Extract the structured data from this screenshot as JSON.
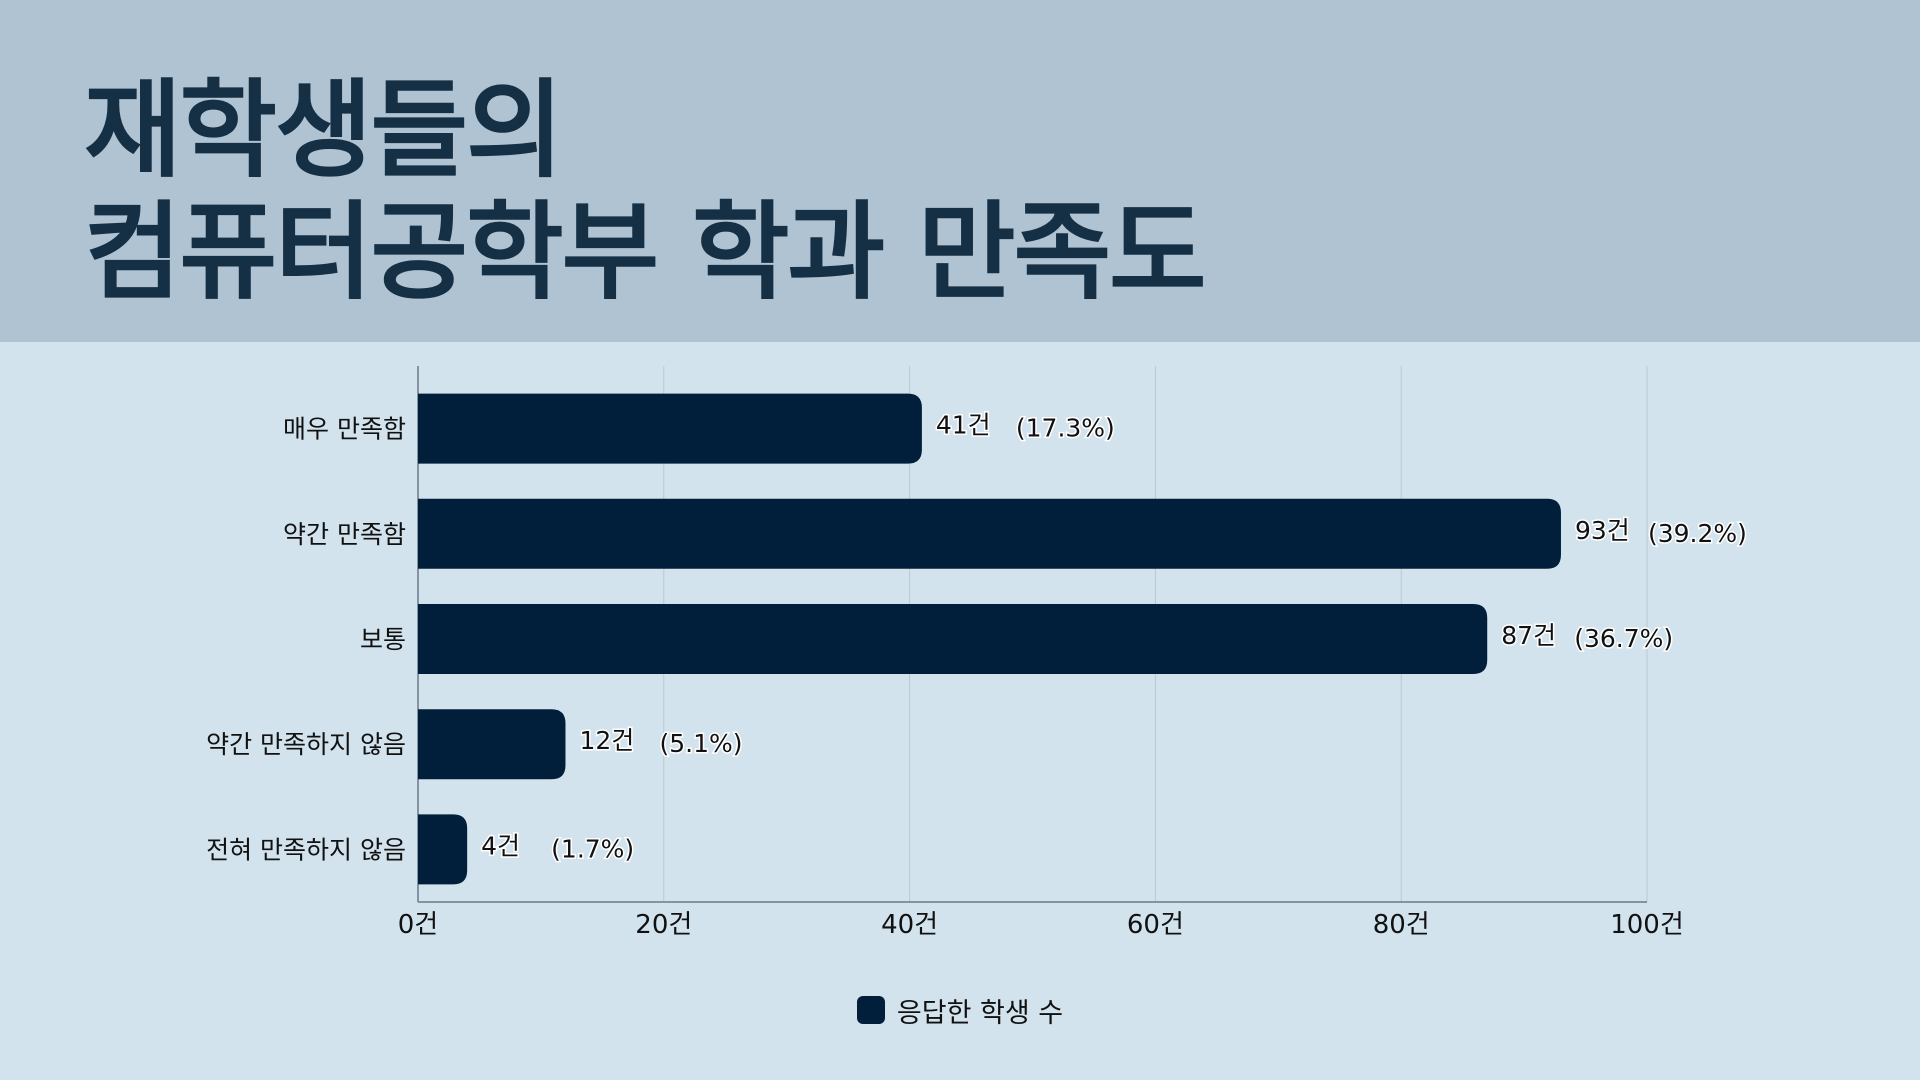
{
  "title_lines": [
    "재학생들의",
    "컴퓨터공학부 학과 만족도"
  ],
  "colors": {
    "header_bg": "#afc3d3",
    "page_bg": "#d2e3ed",
    "title": "#152f45",
    "bar": "#011f3a"
  },
  "chart_data": {
    "type": "bar",
    "orientation": "horizontal",
    "categories": [
      "매우 만족함",
      "약간 만족함",
      "보통",
      "약간 만족하지 않음",
      "전혀 만족하지 않음"
    ],
    "series": [
      {
        "name": "응답한 학생 수",
        "values": [
          41,
          93,
          87,
          12,
          4
        ]
      }
    ],
    "value_labels": [
      "41건",
      "93건",
      "87건",
      "12건",
      "4건"
    ],
    "percent_labels": [
      "(17.3%)",
      "(39.2%)",
      "(36.7%)",
      "(5.1%)",
      "(1.7%)"
    ],
    "xlim": [
      0,
      100
    ],
    "x_ticks": [
      0,
      20,
      40,
      60,
      80,
      100
    ],
    "x_tick_labels": [
      "0건",
      "20건",
      "40건",
      "60건",
      "80건",
      "100건"
    ],
    "grid": true,
    "legend_position": "bottom"
  }
}
